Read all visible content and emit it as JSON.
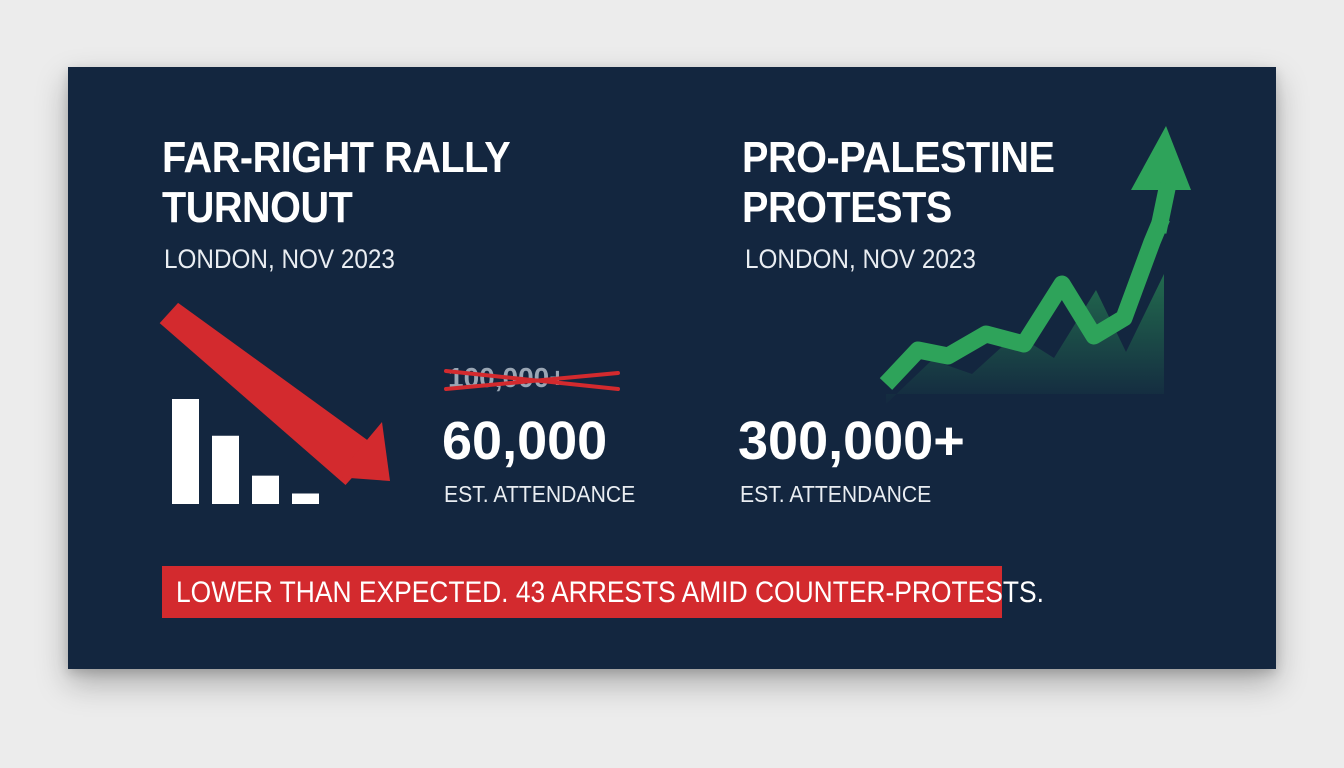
{
  "left_panel": {
    "title_line1": "FAR-RIGHT RALLY",
    "title_line2": "TURNOUT",
    "location": "LONDON, NOV 2023",
    "previous_figure": "100,000+",
    "figure": "60,000",
    "figure_caption": "EST. ATTENDANCE",
    "bar_levels": [
      1.0,
      0.65,
      0.27,
      0.1
    ]
  },
  "right_panel": {
    "title_line1": "PRO-PALESTINE",
    "title_line2": "PROTESTS",
    "location": "LONDON, NOV 2023",
    "figure": "300,000+",
    "figure_caption": "EST. ATTENDANCE"
  },
  "banner": {
    "text": "LOWER THAN EXPECTED. 43 ARRESTS AMID COUNTER-PROTESTS."
  },
  "colors": {
    "background": "#13263f",
    "decline_red": "#d32a2e",
    "growth_green": "#2ea35a",
    "text_white": "#ffffff"
  },
  "icons": {
    "decline": "down-arrow-icon",
    "growth": "up-arrow-icon"
  }
}
